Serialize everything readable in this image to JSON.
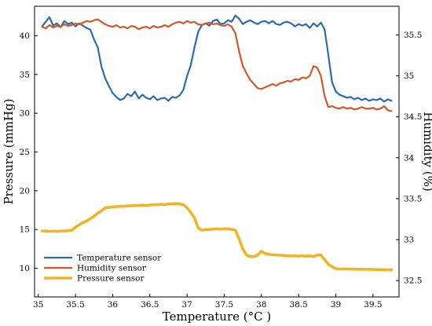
{
  "chart_data": {
    "type": "line",
    "title": "",
    "xlabel": "Temperature (°C )",
    "ylabel_left": "Pressure (mmHg)",
    "ylabel_right": "Humidity (%)",
    "xlim": [
      34.95,
      39.85
    ],
    "ylim_left": [
      6.3,
      43.8
    ],
    "ylim_right": [
      32.3,
      35.85
    ],
    "xticks": [
      35,
      35.5,
      36,
      36.5,
      37,
      37.5,
      38,
      38.5,
      39,
      39.5
    ],
    "yticks_left": [
      10,
      15,
      20,
      25,
      30,
      35,
      40
    ],
    "yticks_right": [
      32.5,
      33,
      33.5,
      34,
      34.5,
      35,
      35.5
    ],
    "grid": false,
    "legend_position": "lower-left",
    "series": [
      {
        "name": "Temperature sensor",
        "color": "#2b6cb0",
        "axis": "left",
        "x": [
          35.05,
          35.1,
          35.15,
          35.2,
          35.25,
          35.3,
          35.35,
          35.4,
          35.45,
          35.5,
          35.55,
          35.6,
          35.65,
          35.7,
          35.75,
          35.8,
          35.85,
          35.9,
          35.95,
          36.0,
          36.05,
          36.1,
          36.15,
          36.2,
          36.25,
          36.3,
          36.35,
          36.4,
          36.45,
          36.5,
          36.55,
          36.6,
          36.65,
          36.7,
          36.75,
          36.8,
          36.85,
          36.9,
          36.95,
          37.0,
          37.05,
          37.1,
          37.15,
          37.2,
          37.25,
          37.3,
          37.35,
          37.4,
          37.45,
          37.5,
          37.55,
          37.6,
          37.65,
          37.7,
          37.75,
          37.8,
          37.85,
          37.9,
          37.95,
          38.0,
          38.05,
          38.1,
          38.15,
          38.2,
          38.25,
          38.3,
          38.35,
          38.4,
          38.45,
          38.5,
          38.55,
          38.6,
          38.65,
          38.7,
          38.75,
          38.8,
          38.85,
          38.9,
          38.95,
          39.0,
          39.05,
          39.1,
          39.15,
          39.2,
          39.25,
          39.3,
          39.35,
          39.4,
          39.45,
          39.5,
          39.55,
          39.6,
          39.65,
          39.7,
          39.75
        ],
        "y": [
          41.2,
          41.8,
          42.4,
          41.3,
          41.6,
          41.1,
          41.9,
          41.5,
          41.7,
          41.2,
          41.6,
          41.3,
          41.0,
          40.8,
          39.5,
          38.5,
          36.0,
          34.5,
          33.5,
          32.6,
          32.1,
          31.7,
          31.9,
          32.5,
          32.2,
          32.8,
          31.9,
          32.4,
          32.0,
          31.8,
          32.2,
          31.7,
          31.9,
          32.0,
          31.6,
          32.1,
          32.0,
          32.3,
          33.0,
          34.8,
          36.2,
          38.5,
          40.5,
          41.4,
          41.6,
          41.3,
          41.9,
          42.1,
          41.5,
          41.6,
          42.0,
          41.8,
          42.6,
          42.2,
          41.5,
          41.8,
          42.0,
          41.7,
          41.5,
          41.8,
          41.9,
          41.6,
          41.9,
          41.5,
          41.4,
          41.7,
          41.8,
          41.6,
          41.2,
          41.5,
          41.3,
          41.5,
          41.0,
          41.6,
          41.2,
          41.7,
          40.8,
          37.5,
          34.0,
          32.8,
          32.4,
          32.2,
          32.0,
          32.1,
          31.8,
          32.0,
          31.7,
          31.9,
          31.6,
          31.8,
          31.7,
          31.9,
          31.5,
          31.8,
          31.6
        ]
      },
      {
        "name": "Humidity sensor",
        "color": "#d4572a",
        "axis": "right",
        "x": [
          35.05,
          35.1,
          35.15,
          35.2,
          35.25,
          35.3,
          35.35,
          35.4,
          35.45,
          35.5,
          35.55,
          35.6,
          35.65,
          35.7,
          35.75,
          35.8,
          35.85,
          35.9,
          35.95,
          36.0,
          36.05,
          36.1,
          36.15,
          36.2,
          36.25,
          36.3,
          36.35,
          36.4,
          36.45,
          36.5,
          36.55,
          36.6,
          36.65,
          36.7,
          36.75,
          36.8,
          36.85,
          36.9,
          36.95,
          37.0,
          37.05,
          37.1,
          37.15,
          37.2,
          37.25,
          37.3,
          37.35,
          37.4,
          37.45,
          37.5,
          37.55,
          37.6,
          37.65,
          37.7,
          37.75,
          37.8,
          37.85,
          37.9,
          37.95,
          38.0,
          38.05,
          38.1,
          38.15,
          38.2,
          38.25,
          38.3,
          38.35,
          38.4,
          38.45,
          38.5,
          38.55,
          38.6,
          38.65,
          38.7,
          38.75,
          38.8,
          38.85,
          38.9,
          38.95,
          39.0,
          39.05,
          39.1,
          39.15,
          39.2,
          39.25,
          39.3,
          39.35,
          39.4,
          39.45,
          39.5,
          39.55,
          39.6,
          39.65,
          39.7,
          39.75
        ],
        "y": [
          35.6,
          35.58,
          35.62,
          35.59,
          35.61,
          35.6,
          35.63,
          35.61,
          35.62,
          35.64,
          35.63,
          35.65,
          35.67,
          35.66,
          35.68,
          35.69,
          35.66,
          35.63,
          35.61,
          35.6,
          35.62,
          35.59,
          35.6,
          35.58,
          35.61,
          35.6,
          35.57,
          35.59,
          35.6,
          35.58,
          35.61,
          35.59,
          35.6,
          35.62,
          35.6,
          35.63,
          35.65,
          35.66,
          35.64,
          35.67,
          35.65,
          35.66,
          35.63,
          35.62,
          35.64,
          35.65,
          35.63,
          35.64,
          35.62,
          35.61,
          35.63,
          35.6,
          35.52,
          35.3,
          35.12,
          35.03,
          34.95,
          34.9,
          34.85,
          34.84,
          34.86,
          34.88,
          34.9,
          34.88,
          34.91,
          34.92,
          34.94,
          34.93,
          34.96,
          34.95,
          34.98,
          34.97,
          35.0,
          35.12,
          35.1,
          35.0,
          34.75,
          34.62,
          34.63,
          34.61,
          34.6,
          34.62,
          34.6,
          34.61,
          34.59,
          34.6,
          34.62,
          34.6,
          34.6,
          34.61,
          34.59,
          34.6,
          34.63,
          34.58,
          34.57
        ]
      },
      {
        "name": "Pressure sensor",
        "color": "#f0b429",
        "axis": "left",
        "x": [
          35.05,
          35.1,
          35.15,
          35.2,
          35.25,
          35.3,
          35.35,
          35.4,
          35.45,
          35.5,
          35.55,
          35.6,
          35.65,
          35.7,
          35.75,
          35.8,
          35.85,
          35.9,
          35.95,
          36.0,
          36.05,
          36.1,
          36.15,
          36.2,
          36.25,
          36.3,
          36.35,
          36.4,
          36.45,
          36.5,
          36.55,
          36.6,
          36.65,
          36.7,
          36.75,
          36.8,
          36.85,
          36.9,
          36.95,
          37.0,
          37.05,
          37.1,
          37.15,
          37.2,
          37.25,
          37.3,
          37.35,
          37.4,
          37.45,
          37.5,
          37.55,
          37.6,
          37.65,
          37.7,
          37.75,
          37.8,
          37.85,
          37.9,
          37.95,
          38.0,
          38.05,
          38.1,
          38.15,
          38.2,
          38.25,
          38.3,
          38.35,
          38.4,
          38.45,
          38.5,
          38.55,
          38.6,
          38.65,
          38.7,
          38.75,
          38.8,
          38.85,
          38.9,
          38.95,
          39.0,
          39.05,
          39.1,
          39.15,
          39.2,
          39.25,
          39.3,
          39.35,
          39.4,
          39.45,
          39.5,
          39.55,
          39.6,
          39.65,
          39.7,
          39.75
        ],
        "y": [
          14.8,
          14.8,
          14.75,
          14.8,
          14.75,
          14.8,
          14.8,
          14.85,
          14.9,
          15.3,
          15.6,
          15.9,
          16.1,
          16.4,
          16.7,
          17.1,
          17.4,
          17.8,
          17.85,
          17.9,
          17.95,
          18.0,
          18.0,
          18.05,
          18.05,
          18.1,
          18.1,
          18.15,
          18.1,
          18.15,
          18.2,
          18.2,
          18.25,
          18.2,
          18.3,
          18.3,
          18.35,
          18.3,
          18.2,
          17.8,
          17.2,
          16.5,
          15.2,
          14.9,
          15.0,
          15.0,
          15.05,
          15.1,
          15.05,
          15.1,
          15.1,
          15.0,
          14.9,
          13.8,
          12.5,
          11.7,
          11.5,
          11.5,
          11.7,
          12.2,
          11.9,
          11.8,
          11.75,
          11.7,
          11.7,
          11.65,
          11.6,
          11.6,
          11.6,
          11.55,
          11.6,
          11.55,
          11.6,
          11.5,
          11.7,
          11.7,
          11.1,
          10.5,
          10.2,
          9.95,
          9.9,
          9.9,
          9.9,
          9.88,
          9.9,
          9.87,
          9.88,
          9.86,
          9.85,
          9.84,
          9.83,
          9.82,
          9.82,
          9.8,
          9.8
        ]
      }
    ]
  }
}
